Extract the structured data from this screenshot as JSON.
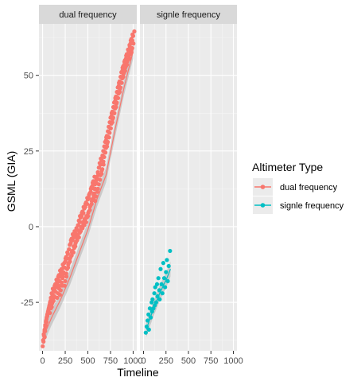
{
  "chart_data": {
    "type": "scatter",
    "facets": [
      "dual frequency",
      "signle frequency"
    ],
    "xlabel": "Timeline",
    "ylabel": "GSML (GIA)",
    "xlim": [
      0,
      1000
    ],
    "ylim": [
      -40,
      65
    ],
    "x_ticks": [
      "0",
      "250",
      "500",
      "750",
      "1000"
    ],
    "y_ticks": [
      "-25",
      "0",
      "25",
      "50"
    ],
    "y_tick_values": [
      -25,
      0,
      25,
      50
    ],
    "x_tick_values": [
      0,
      250,
      500,
      750,
      1000
    ],
    "grid": true,
    "smooth_line": true,
    "legend": {
      "title": "Altimeter Type",
      "position": "right",
      "entries": [
        "dual frequency",
        "signle frequency"
      ]
    },
    "colors": {
      "dual frequency": "#F8766D",
      "signle frequency": "#00BFC4"
    },
    "series": [
      {
        "name": "dual frequency",
        "facet": 0,
        "trend": [
          [
            0,
            -37
          ],
          [
            100,
            -30
          ],
          [
            200,
            -24
          ],
          [
            300,
            -17
          ],
          [
            400,
            -9
          ],
          [
            500,
            -1
          ],
          [
            600,
            9
          ],
          [
            700,
            17
          ],
          [
            800,
            32
          ],
          [
            900,
            46
          ],
          [
            1000,
            58
          ]
        ],
        "points": [
          [
            10,
            -38
          ],
          [
            15,
            -36
          ],
          [
            22,
            -34
          ],
          [
            30,
            -33
          ],
          [
            38,
            -31
          ],
          [
            45,
            -30
          ],
          [
            52,
            -29
          ],
          [
            60,
            -28
          ],
          [
            68,
            -27
          ],
          [
            75,
            -26
          ],
          [
            82,
            -25
          ],
          [
            90,
            -27
          ],
          [
            95,
            -24
          ],
          [
            100,
            -22
          ],
          [
            110,
            -25
          ],
          [
            120,
            -21
          ],
          [
            130,
            -23
          ],
          [
            140,
            -19
          ],
          [
            150,
            -20
          ],
          [
            160,
            -18
          ],
          [
            170,
            -22
          ],
          [
            180,
            -16
          ],
          [
            190,
            -18
          ],
          [
            200,
            -21
          ],
          [
            210,
            -14
          ],
          [
            220,
            -17
          ],
          [
            230,
            -15
          ],
          [
            240,
            -12
          ],
          [
            250,
            -18
          ],
          [
            260,
            -10
          ],
          [
            270,
            -14
          ],
          [
            280,
            -9
          ],
          [
            290,
            -12
          ],
          [
            300,
            -6
          ],
          [
            310,
            -10
          ],
          [
            320,
            -4
          ],
          [
            330,
            -8
          ],
          [
            340,
            -3
          ],
          [
            350,
            -7
          ],
          [
            360,
            -2
          ],
          [
            370,
            -5
          ],
          [
            380,
            -1
          ],
          [
            390,
            -3
          ],
          [
            400,
            2
          ],
          [
            410,
            -2
          ],
          [
            420,
            3
          ],
          [
            430,
            0
          ],
          [
            440,
            5
          ],
          [
            450,
            1
          ],
          [
            460,
            6
          ],
          [
            470,
            2
          ],
          [
            480,
            8
          ],
          [
            490,
            3
          ],
          [
            500,
            9
          ],
          [
            510,
            5
          ],
          [
            520,
            11
          ],
          [
            530,
            7
          ],
          [
            540,
            13
          ],
          [
            550,
            9
          ],
          [
            560,
            15
          ],
          [
            570,
            11
          ],
          [
            580,
            14
          ],
          [
            590,
            10
          ],
          [
            600,
            16
          ],
          [
            610,
            18
          ],
          [
            620,
            14
          ],
          [
            630,
            21
          ],
          [
            640,
            17
          ],
          [
            650,
            22
          ],
          [
            660,
            19
          ],
          [
            670,
            25
          ],
          [
            680,
            23
          ],
          [
            690,
            28
          ],
          [
            700,
            26
          ],
          [
            710,
            30
          ],
          [
            720,
            28
          ],
          [
            730,
            33
          ],
          [
            740,
            31
          ],
          [
            750,
            36
          ],
          [
            760,
            34
          ],
          [
            770,
            38
          ],
          [
            780,
            36
          ],
          [
            790,
            41
          ],
          [
            800,
            39
          ],
          [
            810,
            43
          ],
          [
            820,
            41
          ],
          [
            830,
            46
          ],
          [
            840,
            44
          ],
          [
            850,
            48
          ],
          [
            860,
            46
          ],
          [
            870,
            51
          ],
          [
            880,
            49
          ],
          [
            890,
            53
          ],
          [
            900,
            51
          ],
          [
            910,
            55
          ],
          [
            920,
            53
          ],
          [
            930,
            57
          ],
          [
            940,
            55
          ],
          [
            950,
            58
          ],
          [
            960,
            60
          ],
          [
            970,
            57
          ],
          [
            980,
            62
          ],
          [
            990,
            59
          ],
          [
            1000,
            63
          ]
        ]
      },
      {
        "name": "signle frequency",
        "facet": 1,
        "trend": [
          [
            30,
            -34
          ],
          [
            100,
            -28
          ],
          [
            180,
            -22
          ],
          [
            260,
            -17
          ],
          [
            300,
            -14
          ]
        ],
        "points": [
          [
            25,
            -35
          ],
          [
            35,
            -33
          ],
          [
            45,
            -31
          ],
          [
            55,
            -29
          ],
          [
            60,
            -34
          ],
          [
            70,
            -27
          ],
          [
            80,
            -30
          ],
          [
            90,
            -25
          ],
          [
            95,
            -28
          ],
          [
            100,
            -24
          ],
          [
            110,
            -27
          ],
          [
            120,
            -22
          ],
          [
            125,
            -26
          ],
          [
            130,
            -20
          ],
          [
            140,
            -25
          ],
          [
            150,
            -19
          ],
          [
            155,
            -23
          ],
          [
            165,
            -17
          ],
          [
            175,
            -21
          ],
          [
            180,
            -24
          ],
          [
            190,
            -14
          ],
          [
            200,
            -19
          ],
          [
            210,
            -22
          ],
          [
            220,
            -12
          ],
          [
            230,
            -17
          ],
          [
            240,
            -20
          ],
          [
            250,
            -15
          ],
          [
            260,
            -11
          ],
          [
            270,
            -18
          ],
          [
            280,
            -13
          ],
          [
            295,
            -8
          ]
        ]
      }
    ]
  }
}
